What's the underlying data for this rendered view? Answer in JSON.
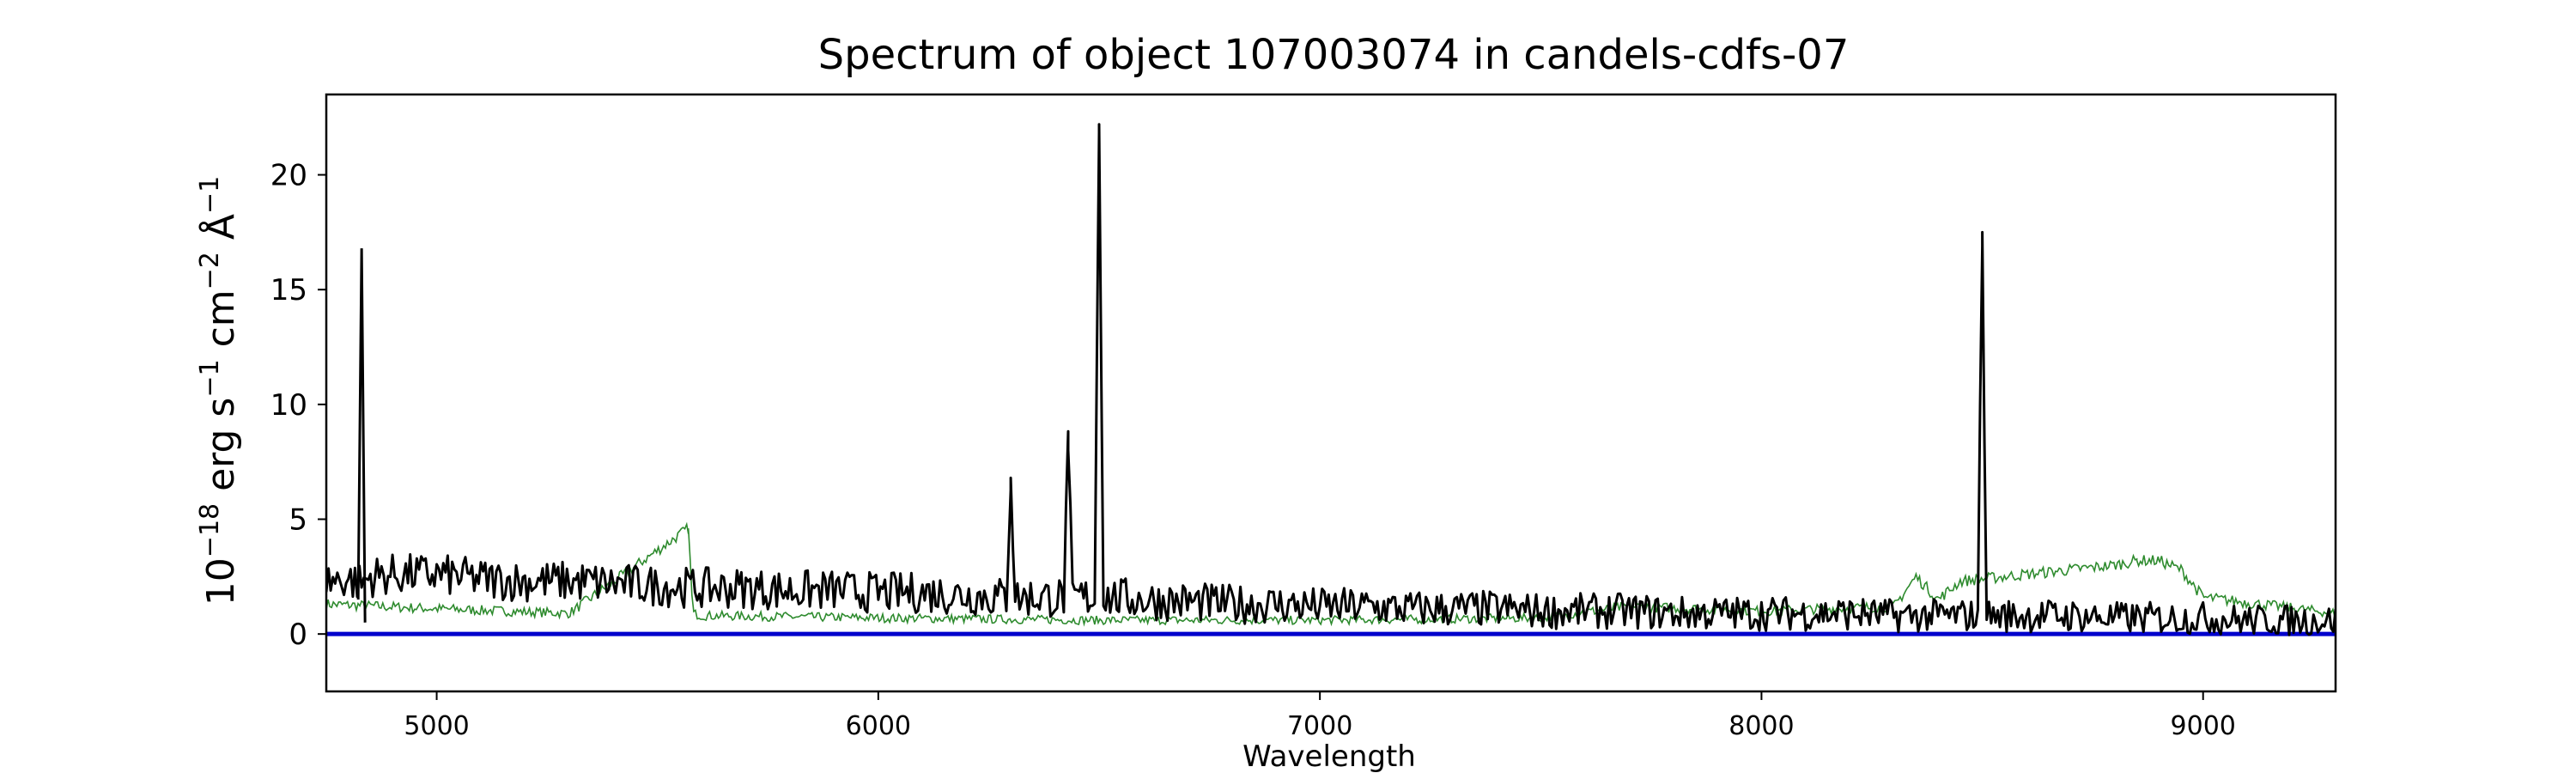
{
  "chart_data": {
    "type": "line",
    "title": "Spectrum of object 107003074 in candels-cdfs-07",
    "xlabel": "Wavelength",
    "ylabel_base": "10",
    "ylabel_exp": "−18",
    "ylabel_rest1": " erg s",
    "ylabel_exp1": "−1",
    "ylabel_rest2": " cm",
    "ylabel_exp2": "−2",
    "ylabel_rest3": " Å",
    "ylabel_exp3": "−1",
    "xlim": [
      4750,
      9300
    ],
    "ylim": [
      -2.5,
      23.5
    ],
    "xticks": [
      5000,
      6000,
      7000,
      8000,
      9000
    ],
    "xtick_labels": [
      "5000",
      "6000",
      "7000",
      "8000",
      "9000"
    ],
    "yticks": [
      0,
      5,
      10,
      15,
      20
    ],
    "ytick_labels": [
      "0",
      "5",
      "10",
      "15",
      "20"
    ],
    "grid": false,
    "colors": {
      "flux": "#000000",
      "error": "#2e8b2e",
      "zero_line": "#0000cc"
    },
    "series": [
      {
        "role": "flux",
        "x": [
          4750,
          4800,
          4830,
          4850,
          4900,
          5000,
          5100,
          5200,
          5300,
          5400,
          5500,
          5600,
          5700,
          5800,
          5900,
          6000,
          6100,
          6200,
          6290,
          6300,
          6310,
          6400,
          6420,
          6430,
          6440,
          6480,
          6490,
          6500,
          6510,
          6600,
          6700,
          6800,
          6900,
          7000,
          7100,
          7200,
          7300,
          7400,
          7500,
          7600,
          7700,
          7800,
          7900,
          8000,
          8100,
          8200,
          8300,
          8400,
          8490,
          8500,
          8510,
          8600,
          8700,
          8800,
          8900,
          9000,
          9100,
          9200,
          9300
        ],
        "y": [
          2.3,
          2.4,
          2.2,
          2.5,
          2.6,
          2.6,
          2.4,
          2.3,
          2.3,
          2.2,
          2.1,
          2.0,
          2.0,
          1.9,
          1.9,
          1.8,
          1.8,
          1.7,
          1.6,
          6.8,
          1.6,
          1.6,
          1.6,
          8.0,
          1.6,
          1.6,
          1.6,
          22.2,
          1.6,
          1.5,
          1.4,
          1.3,
          1.3,
          1.2,
          1.2,
          1.1,
          1.1,
          1.1,
          1.0,
          1.0,
          1.0,
          0.9,
          0.9,
          0.9,
          0.9,
          0.9,
          0.8,
          0.8,
          0.8,
          17.5,
          0.8,
          0.8,
          0.8,
          0.7,
          0.7,
          0.7,
          0.6,
          0.6,
          0.6
        ],
        "spikes": [
          {
            "x": 4830,
            "y": 16.8
          }
        ]
      },
      {
        "role": "error",
        "x": [
          4750,
          5000,
          5300,
          5570,
          5580,
          5600,
          6000,
          6500,
          7000,
          7500,
          7700,
          8000,
          8300,
          8350,
          8400,
          8450,
          8800,
          8850,
          8900,
          8950,
          9000,
          9300
        ],
        "y": [
          1.3,
          1.1,
          0.9,
          4.6,
          0.9,
          0.8,
          0.7,
          0.6,
          0.6,
          0.7,
          1.2,
          1.0,
          1.2,
          2.5,
          1.5,
          2.3,
          3.0,
          3.2,
          3.2,
          2.8,
          1.6,
          0.9
        ]
      },
      {
        "role": "zero_line",
        "x": [
          4750,
          9300
        ],
        "y": [
          0,
          0
        ]
      }
    ]
  }
}
